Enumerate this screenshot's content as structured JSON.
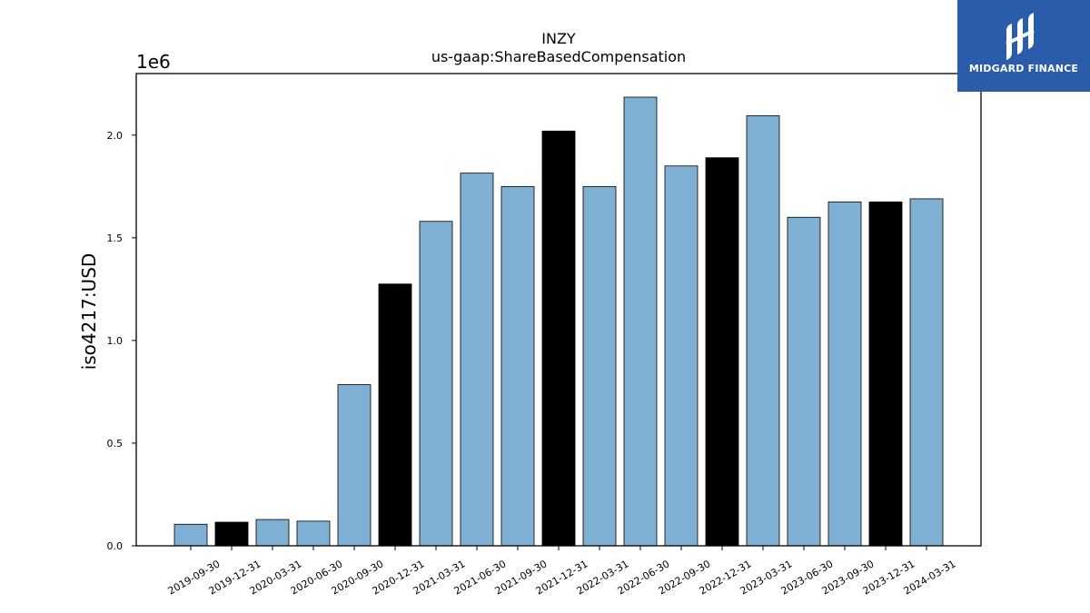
{
  "chart_data": {
    "type": "bar",
    "title": "INZY",
    "subtitle": "us-gaap:ShareBasedCompensation",
    "xlabel": "",
    "ylabel": "iso4217:USD",
    "y_scale_label": "1e6",
    "ylim": [
      0,
      2.3
    ],
    "yticks": [
      "0.0",
      "0.5",
      "1.0",
      "1.5",
      "2.0"
    ],
    "categories": [
      "2019-09-30",
      "2019-12-31",
      "2020-03-31",
      "2020-06-30",
      "2020-09-30",
      "2020-12-31",
      "2021-03-31",
      "2021-06-30",
      "2021-09-30",
      "2021-12-31",
      "2022-03-31",
      "2022-06-30",
      "2022-09-30",
      "2022-12-31",
      "2023-03-31",
      "2023-06-30",
      "2023-09-30",
      "2023-12-31",
      "2024-03-31"
    ],
    "values": [
      0.105,
      0.115,
      0.128,
      0.12,
      0.785,
      1.275,
      1.58,
      1.815,
      1.75,
      2.02,
      1.75,
      2.185,
      1.85,
      1.89,
      2.095,
      1.6,
      1.675,
      1.675,
      1.69
    ],
    "highlighted": [
      false,
      true,
      false,
      false,
      false,
      true,
      false,
      false,
      false,
      true,
      false,
      false,
      false,
      true,
      false,
      false,
      false,
      true,
      false
    ],
    "colors": {
      "bar": "#7fafd3",
      "highlight": "#000000",
      "edge": "#000000"
    },
    "grid": false
  },
  "logo": {
    "text": "MIDGARD FINANCE",
    "color": "#2a5caa"
  }
}
